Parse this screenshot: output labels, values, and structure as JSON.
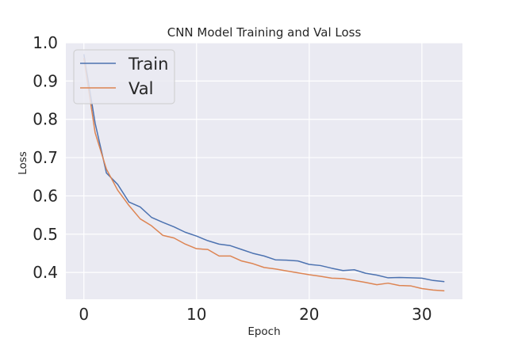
{
  "chart_data": {
    "type": "line",
    "title": "CNN Model Training and Val Loss",
    "xlabel": "Epoch",
    "ylabel": "Loss",
    "xlim": [
      -1.6,
      33.6
    ],
    "ylim": [
      0.33,
      1.0
    ],
    "xticks": [
      "0",
      "10",
      "20",
      "30"
    ],
    "yticks": [
      "1.0",
      "0.9",
      "0.8",
      "0.7",
      "0.6",
      "0.5",
      "0.4"
    ],
    "grid": true,
    "legend_position": "upper-left",
    "background": "#eaeaf2",
    "x": [
      0,
      1,
      2,
      3,
      4,
      5,
      6,
      7,
      8,
      9,
      10,
      11,
      12,
      13,
      14,
      15,
      16,
      17,
      18,
      19,
      20,
      21,
      22,
      23,
      24,
      25,
      26,
      27,
      28,
      29,
      30,
      31,
      32
    ],
    "series": [
      {
        "name": "Train",
        "color": "#4c72b0",
        "values": [
          0.97,
          0.79,
          0.66,
          0.63,
          0.584,
          0.571,
          0.544,
          0.531,
          0.519,
          0.505,
          0.495,
          0.483,
          0.474,
          0.47,
          0.46,
          0.45,
          0.443,
          0.433,
          0.432,
          0.43,
          0.421,
          0.418,
          0.411,
          0.405,
          0.407,
          0.398,
          0.393,
          0.386,
          0.387,
          0.386,
          0.385,
          0.379,
          0.376
        ]
      },
      {
        "name": "Val",
        "color": "#dd8452",
        "values": [
          0.96,
          0.765,
          0.67,
          0.615,
          0.575,
          0.54,
          0.522,
          0.497,
          0.49,
          0.474,
          0.462,
          0.46,
          0.443,
          0.443,
          0.43,
          0.423,
          0.413,
          0.409,
          0.404,
          0.399,
          0.394,
          0.39,
          0.385,
          0.384,
          0.379,
          0.374,
          0.368,
          0.372,
          0.366,
          0.365,
          0.358,
          0.354,
          0.352
        ]
      }
    ]
  }
}
